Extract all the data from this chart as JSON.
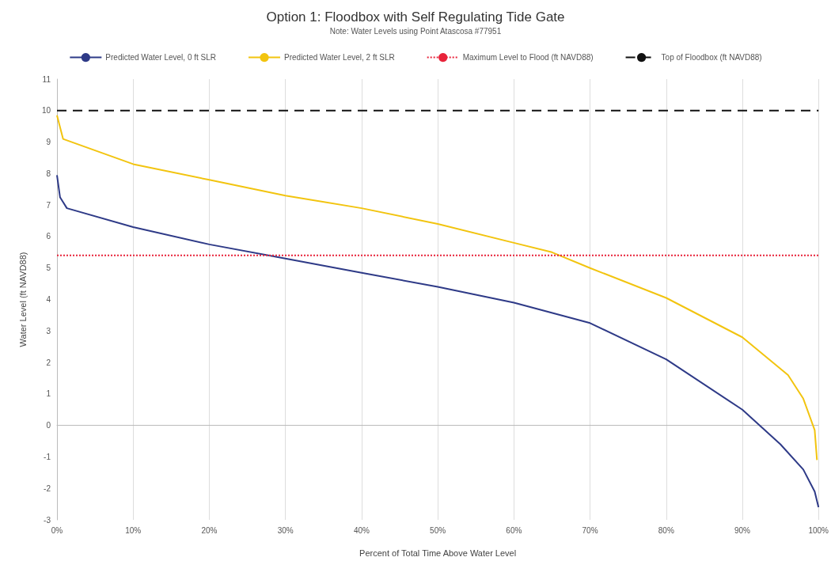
{
  "chart_data": {
    "type": "line",
    "title": "Option 1: Floodbox with Self Regulating Tide Gate",
    "subtitle": "Note: Water Levels using Point Atascosa #77951",
    "xlabel": "Percent of Total Time Above Water Level",
    "ylabel": "Water Level (ft NAVD88)",
    "xlim": [
      0,
      100
    ],
    "xticks": [
      {
        "value": 0,
        "label": "0%"
      },
      {
        "value": 10,
        "label": "10%"
      },
      {
        "value": 20,
        "label": "20%"
      },
      {
        "value": 30,
        "label": "30%"
      },
      {
        "value": 40,
        "label": "40%"
      },
      {
        "value": 50,
        "label": "50%"
      },
      {
        "value": 60,
        "label": "60%"
      },
      {
        "value": 70,
        "label": "70%"
      },
      {
        "value": 80,
        "label": "80%"
      },
      {
        "value": 90,
        "label": "90%"
      },
      {
        "value": 100,
        "label": "100%"
      }
    ],
    "ylim": [
      -3,
      11
    ],
    "yticks": [
      -3,
      -2,
      -1,
      0,
      1,
      2,
      3,
      4,
      5,
      6,
      7,
      8,
      9,
      10,
      11
    ],
    "grid": "x",
    "legend": "top",
    "marker": "none",
    "series": [
      {
        "name": "Predicted Water Level, 0 ft SLR",
        "color": "#2e3a87",
        "x": [
          0,
          0.4,
          1.3,
          10,
          20,
          30,
          40,
          50,
          60,
          70,
          80,
          90,
          95,
          98,
          99.5,
          100
        ],
        "values": [
          7.95,
          7.25,
          6.9,
          6.3,
          5.75,
          5.3,
          4.85,
          4.4,
          3.9,
          3.25,
          2.1,
          0.5,
          -0.6,
          -1.4,
          -2.1,
          -2.6
        ]
      },
      {
        "name": "Predicted Water Level, 2 ft SLR",
        "color": "#f2c40f",
        "x": [
          0,
          0.8,
          10,
          20,
          30,
          40,
          50,
          60,
          65,
          70,
          80,
          90,
          96,
          98,
          99.5,
          99.8
        ],
        "values": [
          9.85,
          9.1,
          8.3,
          7.8,
          7.3,
          6.9,
          6.4,
          5.8,
          5.5,
          5.0,
          4.05,
          2.8,
          1.6,
          0.85,
          -0.15,
          -1.1
        ]
      },
      {
        "name": "Maximum Level to Flood (ft NAVD88)",
        "color": "#e8233a",
        "line_style": "dotted",
        "x": [
          0,
          100
        ],
        "values": [
          5.4,
          5.4
        ]
      },
      {
        "name": "Top of Floodbox (ft NAVD88)",
        "color": "#111111",
        "line_style": "dashed",
        "x": [
          0,
          100
        ],
        "values": [
          10,
          10
        ]
      }
    ]
  }
}
